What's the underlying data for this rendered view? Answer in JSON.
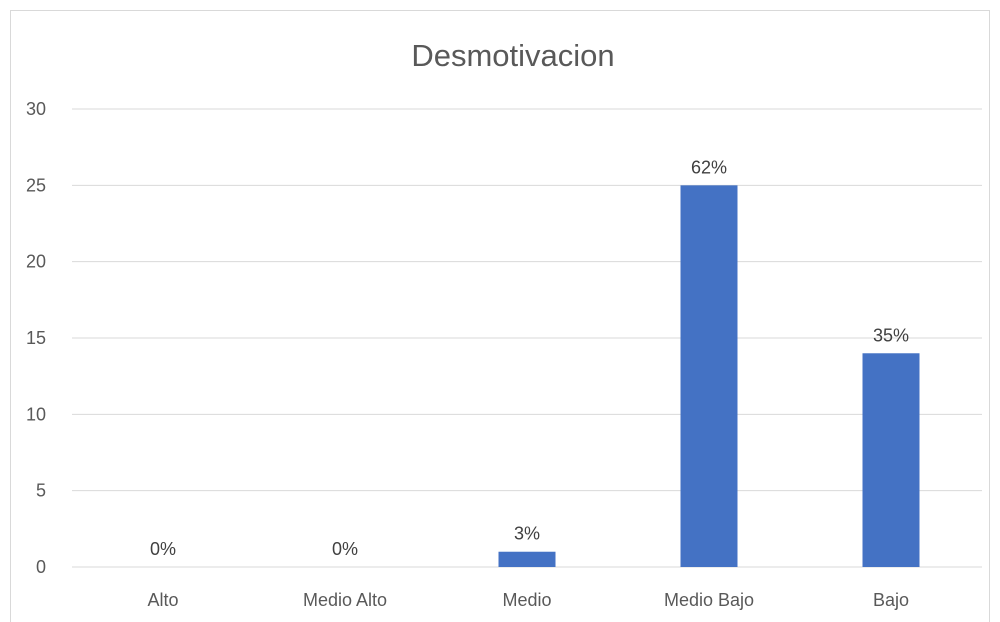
{
  "chart_data": {
    "type": "bar",
    "title": "Desmotivacion",
    "categories": [
      "Alto",
      "Medio Alto",
      "Medio",
      "Medio Bajo",
      "Bajo"
    ],
    "values": [
      0,
      0,
      1,
      25,
      14
    ],
    "data_labels": [
      "0%",
      "0%",
      "3%",
      "62%",
      "35%"
    ],
    "ylim": [
      0,
      30
    ],
    "yticks": [
      0,
      5,
      10,
      15,
      20,
      25,
      30
    ],
    "grid": true,
    "legend": "none",
    "bar_color": "#4472C4",
    "grid_color": "#d9d9d9",
    "text_color": "#595959"
  }
}
